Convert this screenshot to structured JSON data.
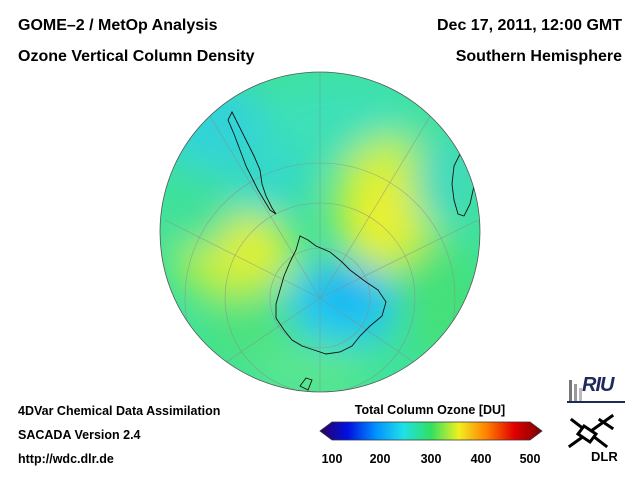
{
  "header": {
    "title_left_1": "GOME–2 / MetOp Analysis",
    "title_left_2": "Ozone Vertical Column Density",
    "title_right_1": "Dec 17, 2011, 12:00 GMT",
    "title_right_2": "Southern Hemisphere"
  },
  "footer": {
    "line1": "4DVar Chemical Data Assimilation",
    "line2": "SACADA Version 2.4",
    "line3": "http://wdc.dlr.de"
  },
  "map": {
    "projection": "orthographic, south polar view",
    "icon": "globe-map"
  },
  "colorbar": {
    "title": "Total Column Ozone [DU]",
    "min": 100,
    "max": 500,
    "ticks": [
      "100",
      "200",
      "300",
      "400",
      "500"
    ],
    "colors": [
      "#2a0060",
      "#0010e0",
      "#0090ff",
      "#20e0e8",
      "#30e060",
      "#f0f020",
      "#ff8000",
      "#e00000",
      "#7a0000"
    ]
  },
  "logos": {
    "riu": "RIU",
    "dlr": "DLR"
  }
}
